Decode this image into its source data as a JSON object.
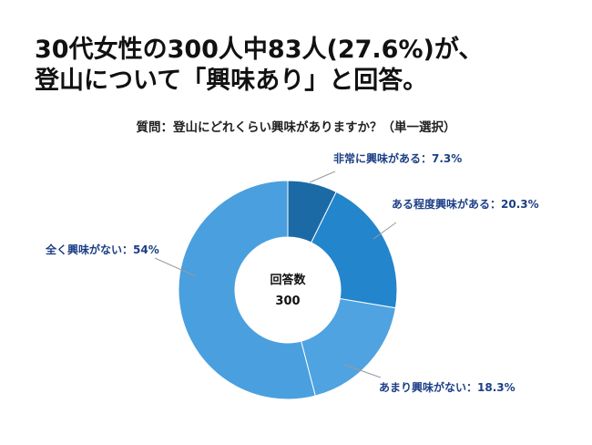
{
  "headline": {
    "line1": "30代女性の300人中83人(27.6%)が、",
    "line2": "登山について「興味あり」と回答。"
  },
  "chart_data": {
    "type": "pie",
    "title": "質問：登山にどれくらい興味がありますか？（単一選択）",
    "center_label": "回答数",
    "center_value": "300",
    "slices": [
      {
        "label": "非常に興味がある：7.3%",
        "value": 7.3,
        "color": "#1b6aa5"
      },
      {
        "label": "ある程度興味がある：20.3%",
        "value": 20.3,
        "color": "#2385cc"
      },
      {
        "label": "あまり興味がない：18.3%",
        "value": 18.3,
        "color": "#4fa3e0"
      },
      {
        "label": "全く興味がない：54%",
        "value": 54,
        "color": "#4a9fde"
      }
    ],
    "label_color": "#1c3f86",
    "leader_color": "#9a9a9a"
  }
}
